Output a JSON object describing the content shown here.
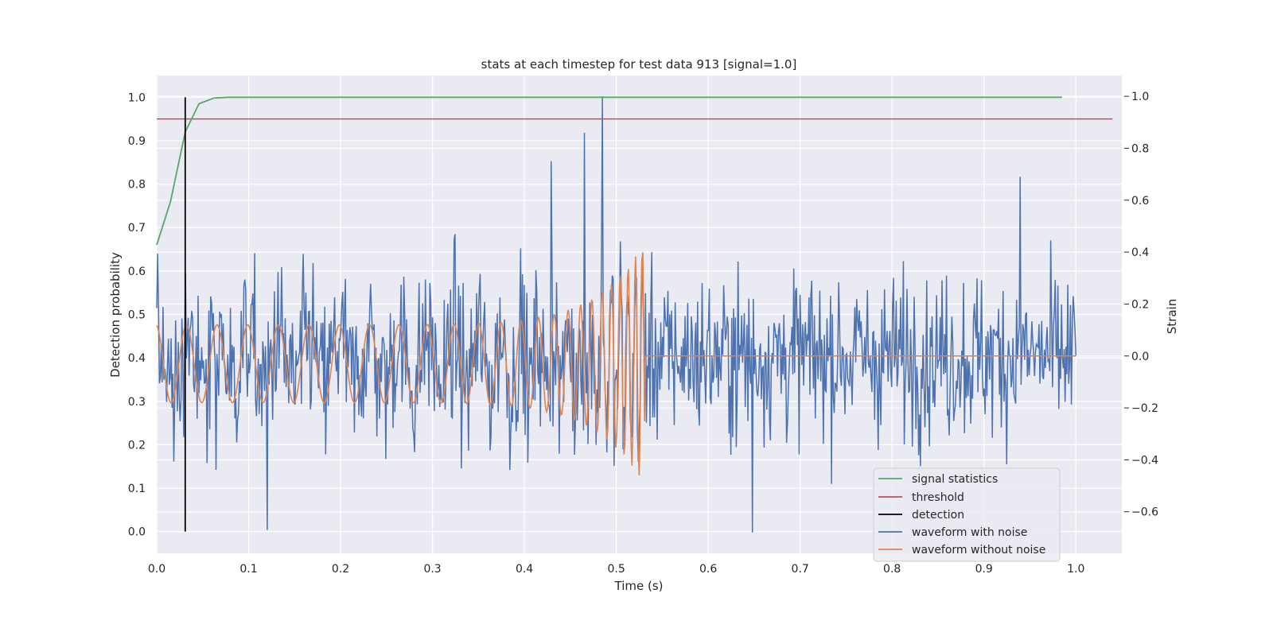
{
  "chart_data": {
    "type": "line",
    "title": "stats at each timestep for test data 913 [signal=1.0]",
    "xlabel": "Time (s)",
    "ylabel_left": "Detection probability",
    "ylabel_right": "Strain",
    "xlim": [
      0.0,
      1.05
    ],
    "ylim_left": [
      -0.05,
      1.05
    ],
    "ylim_right": [
      -0.76,
      1.08
    ],
    "x_ticks": [
      "0.0",
      "0.1",
      "0.2",
      "0.3",
      "0.4",
      "0.5",
      "0.6",
      "0.7",
      "0.8",
      "0.9",
      "1.0"
    ],
    "y_left_ticks": [
      "0.0",
      "0.1",
      "0.2",
      "0.3",
      "0.4",
      "0.5",
      "0.6",
      "0.7",
      "0.8",
      "0.9",
      "1.0"
    ],
    "y_right_ticks": [
      "−0.6",
      "−0.4",
      "−0.2",
      "0.0",
      "0.2",
      "0.4",
      "0.6",
      "0.8",
      "1.0"
    ],
    "grid": true,
    "legend_position": "lower-right",
    "legend": [
      {
        "name": "signal statistics",
        "color": "#55a868"
      },
      {
        "name": "threshold",
        "color": "#c44e52"
      },
      {
        "name": "detection",
        "color": "#000000"
      },
      {
        "name": "waveform with noise",
        "color": "#4c72b0"
      },
      {
        "name": "waveform without noise",
        "color": "#dd8452"
      }
    ],
    "signal_statistics": {
      "axis": "left",
      "x": [
        0.0,
        0.015,
        0.031,
        0.046,
        0.062,
        0.078,
        0.985
      ],
      "y": [
        0.66,
        0.76,
        0.92,
        0.985,
        0.998,
        1.0,
        1.0
      ]
    },
    "threshold": {
      "axis": "left",
      "y": 0.95,
      "x_range": [
        0.0,
        1.04
      ]
    },
    "detection": {
      "axis": "left",
      "x": 0.031,
      "y_range": [
        0.0,
        1.0
      ]
    },
    "waveform_with_noise": {
      "axis": "right",
      "x_range": [
        0.0,
        1.0
      ],
      "n_points": 1024,
      "y_range": [
        -0.68,
        1.0
      ],
      "notable_points": [
        {
          "x": 0.485,
          "y": 1.0
        },
        {
          "x": 0.465,
          "y": 0.86
        },
        {
          "x": 0.429,
          "y": 0.75
        },
        {
          "x": 0.939,
          "y": 0.69
        },
        {
          "x": 0.648,
          "y": -0.68
        },
        {
          "x": 0.12,
          "y": -0.67
        }
      ]
    },
    "waveform_without_noise": {
      "axis": "right",
      "x_range": [
        0.0,
        1.0
      ],
      "merger_time": 0.531,
      "amplitude_start": 0.15,
      "amplitude_peak": 0.47,
      "frequency_start_hz": 30,
      "frequency_end_hz": 140,
      "after_merger_value": 0.0
    }
  }
}
